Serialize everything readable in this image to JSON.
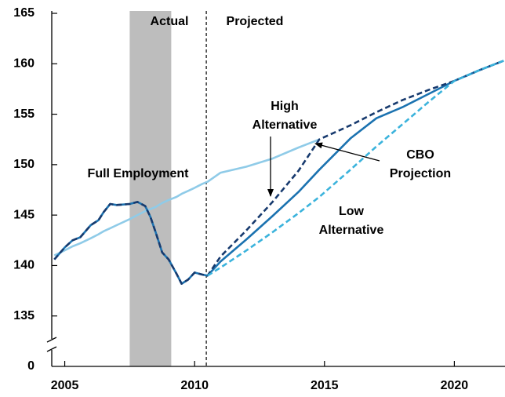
{
  "chart_data": {
    "type": "line",
    "xlim": [
      2004.5,
      2021.95
    ],
    "ylim": [
      130,
      165
    ],
    "xticks": [
      2005,
      2010,
      2015,
      2020
    ],
    "yticks": [
      135,
      140,
      145,
      150,
      155,
      160,
      165
    ],
    "y_break_label": "0",
    "shaded": [
      2007.5,
      2009.1
    ],
    "shade_color": "#bdbdbd",
    "projection_start": 2010.45,
    "annotations": [
      {
        "text": [
          "Actual"
        ]
      },
      {
        "text": [
          "Projected"
        ]
      },
      {
        "text": [
          "Full Employment"
        ]
      },
      {
        "text": [
          "High",
          "Alternative"
        ]
      },
      {
        "text": [
          "CBO",
          "Projection"
        ]
      },
      {
        "text": [
          "Low",
          "Alternative"
        ]
      }
    ],
    "x": [
      2004.6,
      2005,
      2005.3,
      2005.6,
      2006,
      2006.3,
      2006.5,
      2006.75,
      2007,
      2007.5,
      2007.8,
      2008.1,
      2008.3,
      2008.5,
      2008.75,
      2009,
      2009.3,
      2009.5,
      2009.75,
      2010,
      2010.3,
      2010.5,
      2011,
      2012,
      2013,
      2014,
      2014.8,
      2016,
      2017,
      2018,
      2019,
      2020,
      2021,
      2021.9
    ],
    "series": [
      {
        "name": "Full Employment",
        "color": "#8fcbe8",
        "dash": false,
        "values": [
          141.0,
          141.5,
          141.9,
          142.2,
          142.7,
          143.1,
          143.4,
          143.7,
          144.0,
          144.6,
          145.0,
          145.4,
          145.6,
          145.8,
          146.2,
          146.5,
          146.8,
          147.1,
          147.4,
          147.7,
          148.1,
          148.3,
          149.2,
          149.8,
          150.6,
          151.7,
          152.5,
          null,
          null,
          null,
          null,
          null,
          null,
          null
        ]
      },
      {
        "name": "CBO Projection",
        "color": "#1b72b0",
        "dash": false,
        "values": [
          140.6,
          141.8,
          142.5,
          142.8,
          144.0,
          144.5,
          145.3,
          146.1,
          146.0,
          146.1,
          146.3,
          145.9,
          144.8,
          143.3,
          141.3,
          140.6,
          139.2,
          138.2,
          138.6,
          139.3,
          139.1,
          139.0,
          140.4,
          142.6,
          144.9,
          147.3,
          149.5,
          152.6,
          154.6,
          155.7,
          157.0,
          158.3,
          159.4,
          160.3
        ]
      },
      {
        "name": "High Alternative",
        "color": "#173a6e",
        "dash": true,
        "values": [
          140.6,
          141.8,
          142.5,
          142.8,
          144.0,
          144.5,
          145.3,
          146.1,
          146.0,
          146.1,
          146.3,
          145.9,
          144.8,
          143.3,
          141.3,
          140.6,
          139.2,
          138.2,
          138.6,
          139.3,
          139.1,
          139.0,
          140.9,
          143.5,
          146.3,
          149.4,
          152.5,
          153.9,
          155.2,
          156.4,
          157.4,
          158.3,
          159.4,
          160.3
        ]
      },
      {
        "name": "Low Alternative",
        "color": "#3bb3dc",
        "dash": true,
        "values": [
          null,
          null,
          null,
          null,
          null,
          null,
          null,
          null,
          null,
          null,
          null,
          null,
          null,
          null,
          null,
          null,
          null,
          null,
          null,
          null,
          null,
          139.0,
          139.8,
          141.5,
          143.3,
          145.2,
          146.8,
          149.5,
          151.8,
          154.0,
          156.2,
          158.3,
          159.4,
          160.3
        ]
      }
    ]
  }
}
